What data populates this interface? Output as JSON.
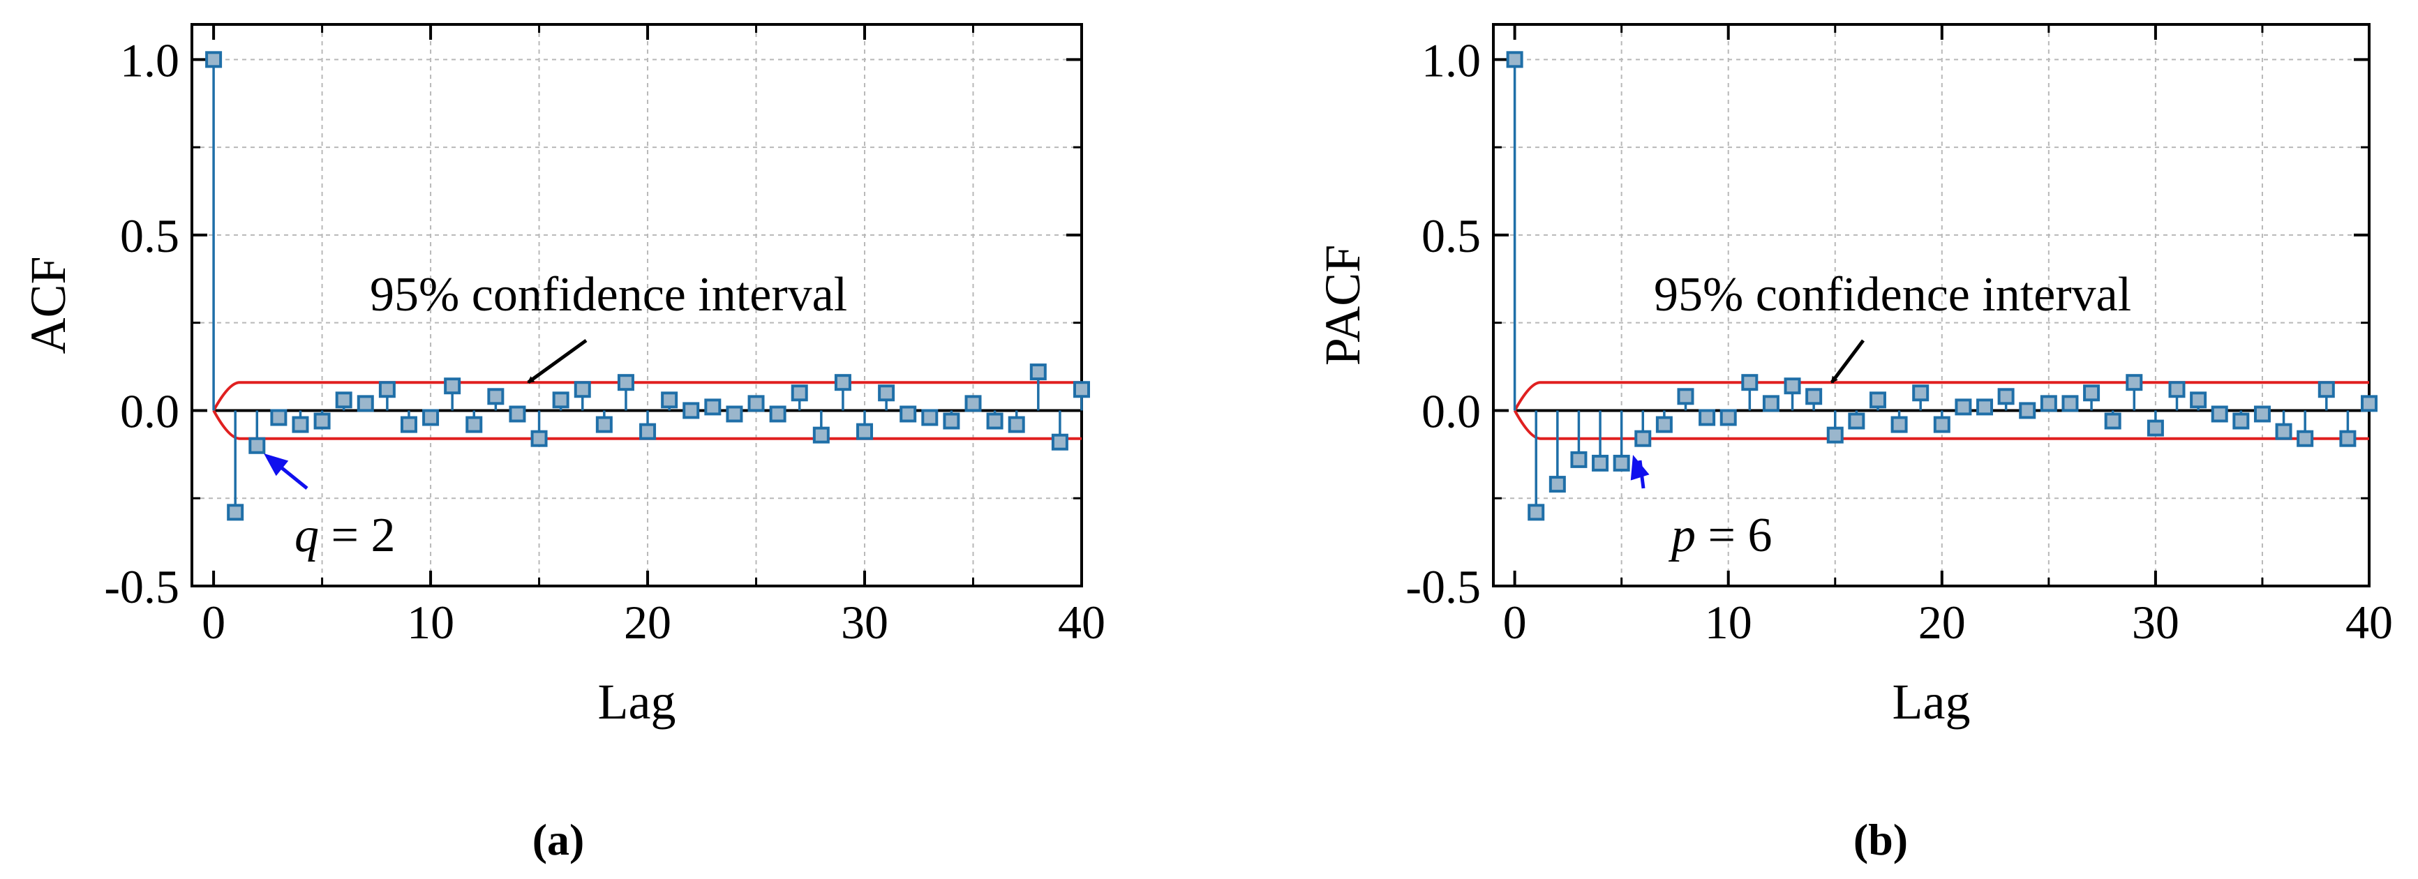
{
  "chart_data": [
    {
      "type": "stem",
      "panel_label": "(a)",
      "xlabel": "Lag",
      "ylabel": "ACF",
      "xlim": [
        -1,
        40
      ],
      "ylim": [
        -0.5,
        1.1
      ],
      "xticks": [
        "0",
        "10",
        "20",
        "30",
        "40"
      ],
      "yticks": [
        "-0.5",
        "0.0",
        "0.5",
        "1.0"
      ],
      "grid": true,
      "lags": [
        0,
        1,
        2,
        3,
        4,
        5,
        6,
        7,
        8,
        9,
        10,
        11,
        12,
        13,
        14,
        15,
        16,
        17,
        18,
        19,
        20,
        21,
        22,
        23,
        24,
        25,
        26,
        27,
        28,
        29,
        30,
        31,
        32,
        33,
        34,
        35,
        36,
        37,
        38,
        39,
        40
      ],
      "values": [
        1.0,
        -0.29,
        -0.1,
        -0.02,
        -0.04,
        -0.03,
        0.03,
        0.02,
        0.06,
        -0.04,
        -0.02,
        0.07,
        -0.04,
        0.04,
        -0.01,
        -0.08,
        0.03,
        0.06,
        -0.04,
        0.08,
        -0.06,
        0.03,
        0.0,
        0.01,
        -0.01,
        0.02,
        -0.01,
        0.05,
        -0.07,
        0.08,
        -0.06,
        0.05,
        -0.01,
        -0.02,
        -0.03,
        0.02,
        -0.03,
        -0.04,
        0.11,
        -0.09,
        0.06
      ],
      "confidence_band": 0.08,
      "confidence_label": "95% confidence interval",
      "order_label": {
        "var": "q",
        "rest": " = 2",
        "lag": 2
      },
      "series_color": "#1f6fa8",
      "marker_fill": "#9ab6cc",
      "band_color": "#e02020",
      "arrow_color": "#1010ee"
    },
    {
      "type": "stem",
      "panel_label": "(b)",
      "xlabel": "Lag",
      "ylabel": "PACF",
      "xlim": [
        -1,
        40
      ],
      "ylim": [
        -0.5,
        1.1
      ],
      "xticks": [
        "0",
        "10",
        "20",
        "30",
        "40"
      ],
      "yticks": [
        "-0.5",
        "0.0",
        "0.5",
        "1.0"
      ],
      "grid": true,
      "lags": [
        0,
        1,
        2,
        3,
        4,
        5,
        6,
        7,
        8,
        9,
        10,
        11,
        12,
        13,
        14,
        15,
        16,
        17,
        18,
        19,
        20,
        21,
        22,
        23,
        24,
        25,
        26,
        27,
        28,
        29,
        30,
        31,
        32,
        33,
        34,
        35,
        36,
        37,
        38,
        39,
        40
      ],
      "values": [
        1.0,
        -0.29,
        -0.21,
        -0.14,
        -0.15,
        -0.15,
        -0.08,
        -0.04,
        0.04,
        -0.02,
        -0.02,
        0.08,
        0.02,
        0.07,
        0.04,
        -0.07,
        -0.03,
        0.03,
        -0.04,
        0.05,
        -0.04,
        0.01,
        0.01,
        0.04,
        0.0,
        0.02,
        0.02,
        0.05,
        -0.03,
        0.08,
        -0.05,
        0.06,
        0.03,
        -0.01,
        -0.03,
        -0.01,
        -0.06,
        -0.08,
        0.06,
        -0.08,
        0.02
      ],
      "confidence_band": 0.08,
      "confidence_label": "95% confidence interval",
      "order_label": {
        "var": "p",
        "rest": " = 6",
        "lag": 6
      },
      "series_color": "#1f6fa8",
      "marker_fill": "#9ab6cc",
      "band_color": "#e02020",
      "arrow_color": "#1010ee"
    }
  ]
}
